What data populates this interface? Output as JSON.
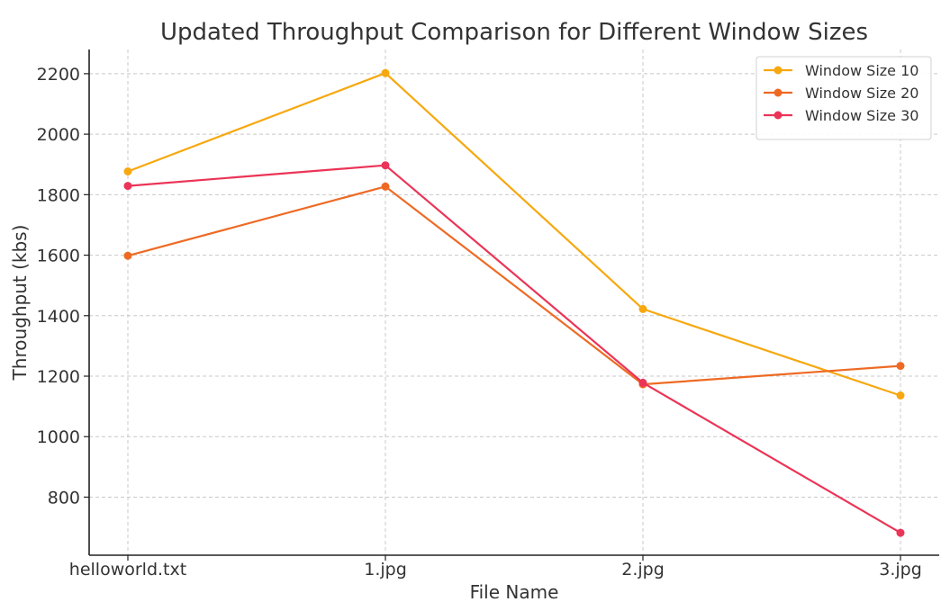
{
  "chart_data": {
    "type": "line",
    "title": "Updated Throughput Comparison for Different Window Sizes",
    "xlabel": "File Name",
    "ylabel": "Throughput (kbs)",
    "categories": [
      "helloworld.txt",
      "1.jpg",
      "2.jpg",
      "3.jpg"
    ],
    "y_ticks": [
      800,
      1000,
      1200,
      1400,
      1600,
      1800,
      2000,
      2200
    ],
    "ylim": [
      608,
      2280
    ],
    "grid": true,
    "legend_position": "top-right",
    "series": [
      {
        "name": "Window Size 10",
        "color": "#F7A80F",
        "values": [
          1877,
          2202,
          1422,
          1136
        ]
      },
      {
        "name": "Window Size 20",
        "color": "#EE6A24",
        "values": [
          1598,
          1827,
          1173,
          1234
        ]
      },
      {
        "name": "Window Size 30",
        "color": "#EB3457",
        "values": [
          1829,
          1897,
          1178,
          682
        ]
      }
    ]
  }
}
